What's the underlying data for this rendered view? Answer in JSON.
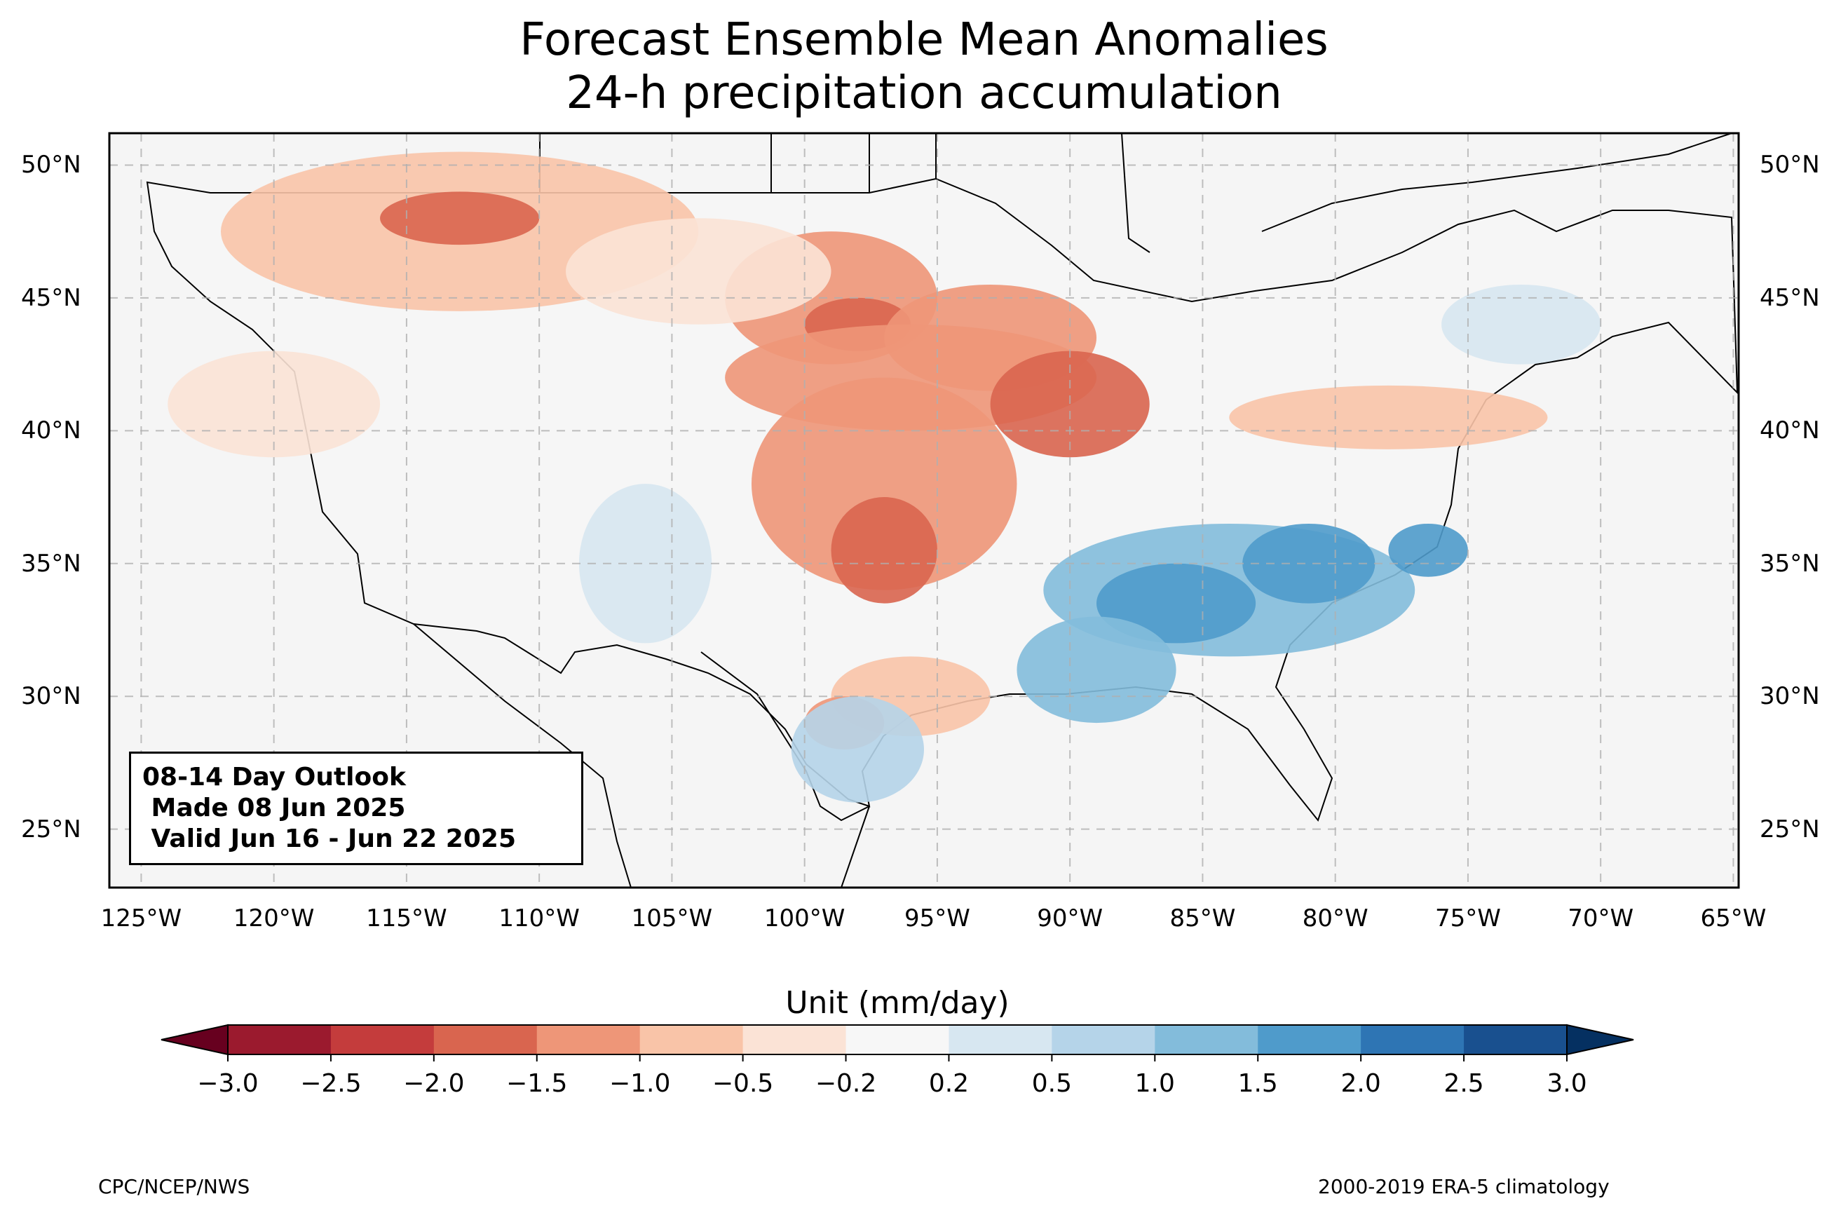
{
  "title": {
    "line1": "Forecast Ensemble Mean Anomalies",
    "line2": "24-h precipitation accumulation"
  },
  "map": {
    "background_color": "#f5f5f5",
    "lat_ticks": [
      "50°N",
      "45°N",
      "40°N",
      "35°N",
      "30°N",
      "25°N"
    ],
    "lon_ticks": [
      "125°W",
      "120°W",
      "115°W",
      "110°W",
      "105°W",
      "100°W",
      "95°W",
      "90°W",
      "85°W",
      "80°W",
      "75°W",
      "70°W",
      "65°W"
    ],
    "extent": {
      "lon_min": -126.2,
      "lon_max": -64.8,
      "lat_min": 22.8,
      "lat_max": 51.2
    }
  },
  "outlook": {
    "line1": "08-14 Day Outlook",
    "line2": " Made 08 Jun 2025",
    "line3": " Valid Jun 16 - Jun 22 2025"
  },
  "colorbar": {
    "title": "Unit (mm/day)",
    "ticks": [
      "−3.0",
      "−2.5",
      "−2.0",
      "−1.5",
      "−1.0",
      "−0.5",
      "−0.2",
      "0.2",
      "0.5",
      "1.0",
      "1.5",
      "2.0",
      "2.5",
      "3.0"
    ],
    "colors": [
      "#67001f",
      "#9b1a2e",
      "#c43c3c",
      "#d9654f",
      "#ee9678",
      "#f9c4a8",
      "#fbe3d6",
      "#f7f7f7",
      "#d7e7f1",
      "#b5d4e9",
      "#83bcdb",
      "#4f9bcb",
      "#2e75b4",
      "#19508f",
      "#053061"
    ]
  },
  "footer": {
    "left": "CPC/NCEP/NWS",
    "right": "2000-2019 ERA-5 climatology"
  }
}
